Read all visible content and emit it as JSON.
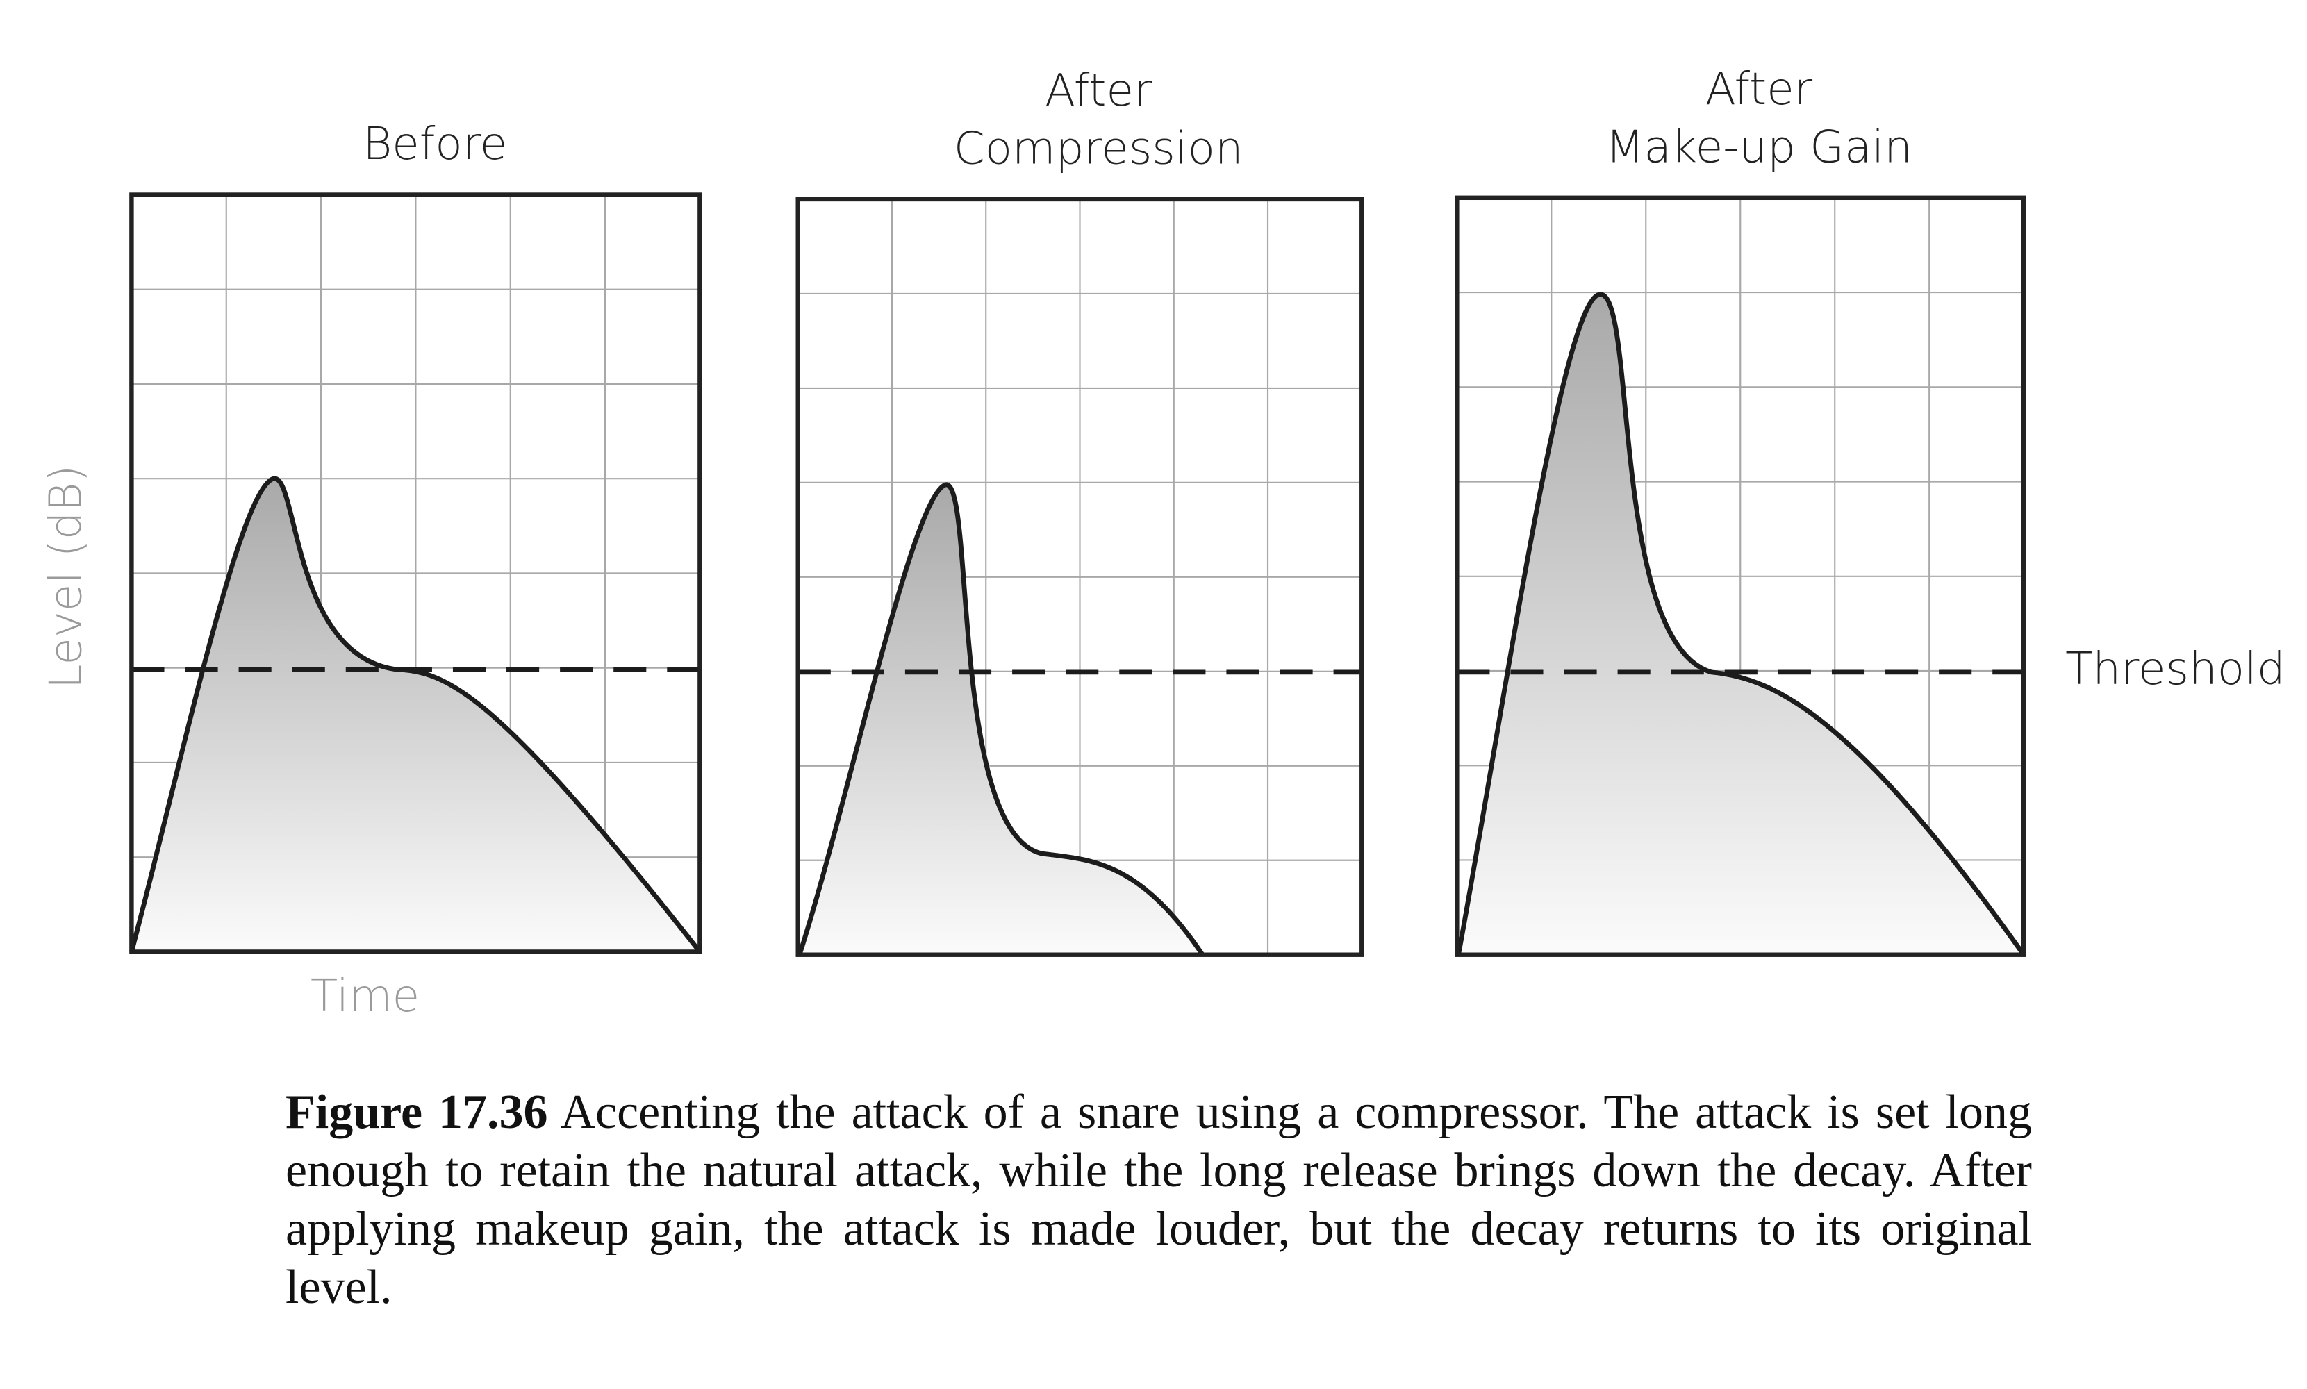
{
  "panels": [
    {
      "title_lines": [
        "Before"
      ]
    },
    {
      "title_lines": [
        "After",
        "Compression"
      ]
    },
    {
      "title_lines": [
        "After",
        "Make-up Gain"
      ]
    }
  ],
  "y_axis_label": "Level (dB)",
  "x_axis_label": "Time",
  "threshold_label": "Threshold",
  "caption": {
    "label": "Figure 17.36",
    "text": "Accenting the attack of a snare using a compressor. The attack is set long enough to retain the natural attack, while the long release brings down the decay. After applying makeup gain, the attack is made louder, but the decay returns to its original level."
  }
}
